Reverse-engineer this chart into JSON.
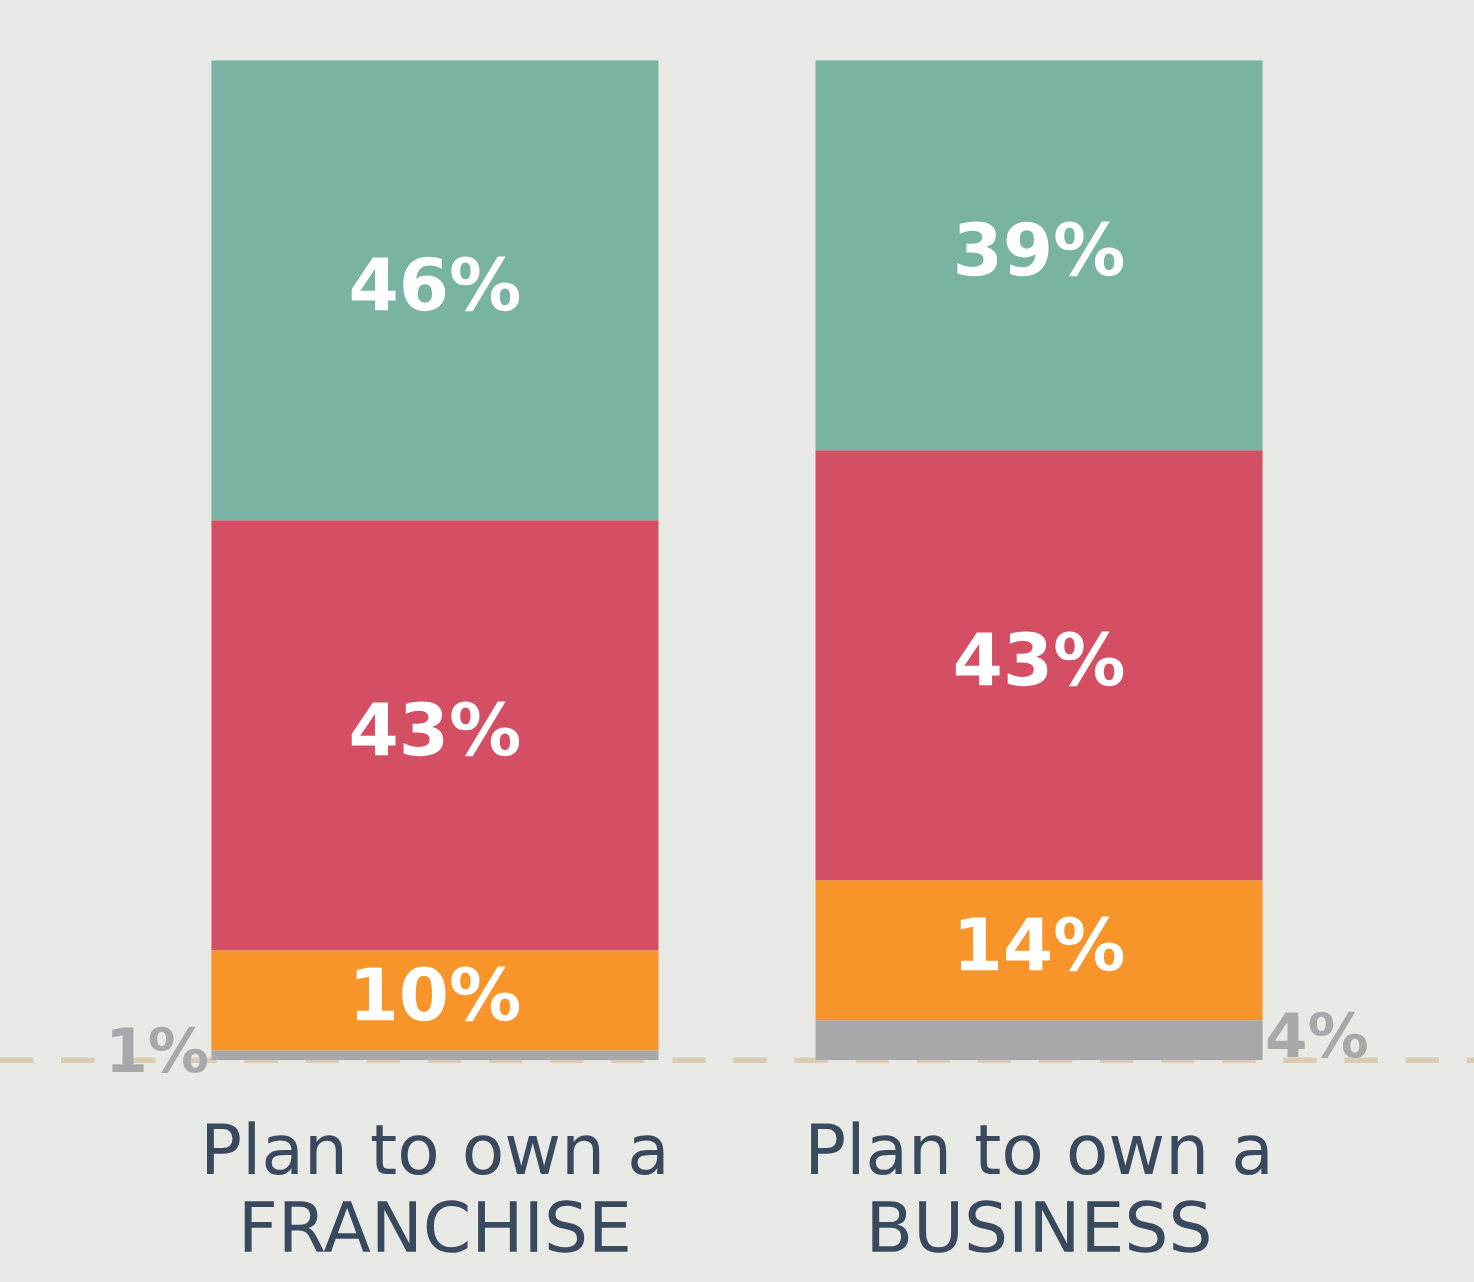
{
  "chart_data": {
    "type": "bar",
    "stacked": true,
    "categories": [
      "Plan to own a\nFRANCHISE",
      "Plan to own a\nBUSINESS"
    ],
    "series": [
      {
        "color": "#a7a8aa",
        "values": [
          1,
          4
        ],
        "value_labels": [
          "1%",
          "4%"
        ]
      },
      {
        "color": "#f7952a",
        "values": [
          10,
          14
        ],
        "value_labels": [
          "10%",
          "14%"
        ]
      },
      {
        "color": "#d44f64",
        "values": [
          43,
          43
        ],
        "value_labels": [
          "43%",
          "43%"
        ]
      },
      {
        "color": "#78b3a3",
        "values": [
          46,
          39
        ],
        "value_labels": [
          "46%",
          "39%"
        ]
      }
    ],
    "ref_lines": [
      {
        "axis": "y",
        "value": 0,
        "color": "#dccbb3",
        "line_style": "dashed"
      }
    ],
    "grid": false,
    "legend": false
  }
}
